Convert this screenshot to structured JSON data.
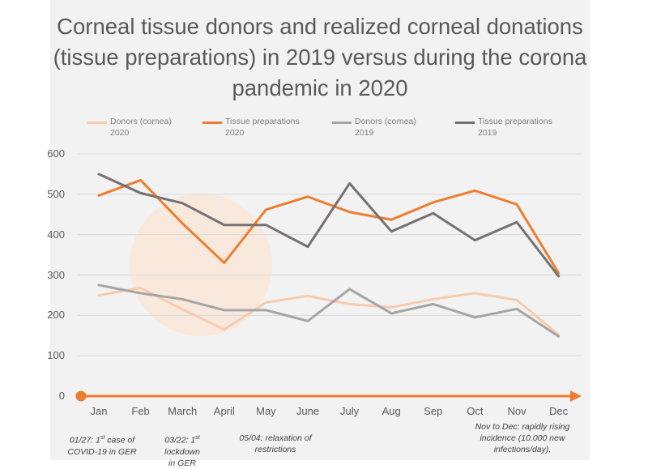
{
  "chart_data": {
    "type": "line",
    "title": "Corneal tissue donors and realized corneal donations (tissue preparations) in 2019 versus during the corona pandemic in 2020",
    "xlabel": "",
    "ylabel": "",
    "categories": [
      "Jan",
      "Feb",
      "March",
      "April",
      "May",
      "June",
      "July",
      "Aug",
      "Sep",
      "Oct",
      "Nov",
      "Dec"
    ],
    "y_ticks": [
      0,
      100,
      200,
      300,
      400,
      500,
      600
    ],
    "ylim": [
      0,
      600
    ],
    "grid": "horizontal",
    "legend_position": "top",
    "series": [
      {
        "name": "Donors (cornea) 2020",
        "color": "#f8cbad",
        "values": [
          250,
          268,
          215,
          165,
          232,
          248,
          228,
          220,
          240,
          255,
          238,
          152
        ]
      },
      {
        "name": "Tissue preparations 2020",
        "color": "#ed7d31",
        "values": [
          497,
          535,
          428,
          330,
          462,
          494,
          456,
          437,
          480,
          509,
          475,
          305
        ]
      },
      {
        "name": "Donors (cornea) 2019",
        "color": "#a5a5a5",
        "values": [
          275,
          255,
          240,
          213,
          213,
          186,
          265,
          205,
          228,
          195,
          216,
          148
        ]
      },
      {
        "name": "Tissue preparations 2019",
        "color": "#767171",
        "values": [
          550,
          503,
          478,
          424,
          424,
          370,
          527,
          408,
          453,
          386,
          431,
          297
        ]
      }
    ],
    "annotations": [
      {
        "text": "01/27: 1st case of\nCOVID-19 in GER",
        "category": "Jan"
      },
      {
        "text": "03/22: 1st lockdown\nin GER",
        "category": "March"
      },
      {
        "text": "05/04: relaxation of\nrestrictions",
        "category": "May"
      },
      {
        "text": "Nov to Dec: rapidly rising\nincidence (10.000 new\ninfections/day),",
        "category": "Nov"
      }
    ],
    "highlight_circle_color": "#fbe5d6",
    "axis_arrow_color": "#ed7d31"
  }
}
